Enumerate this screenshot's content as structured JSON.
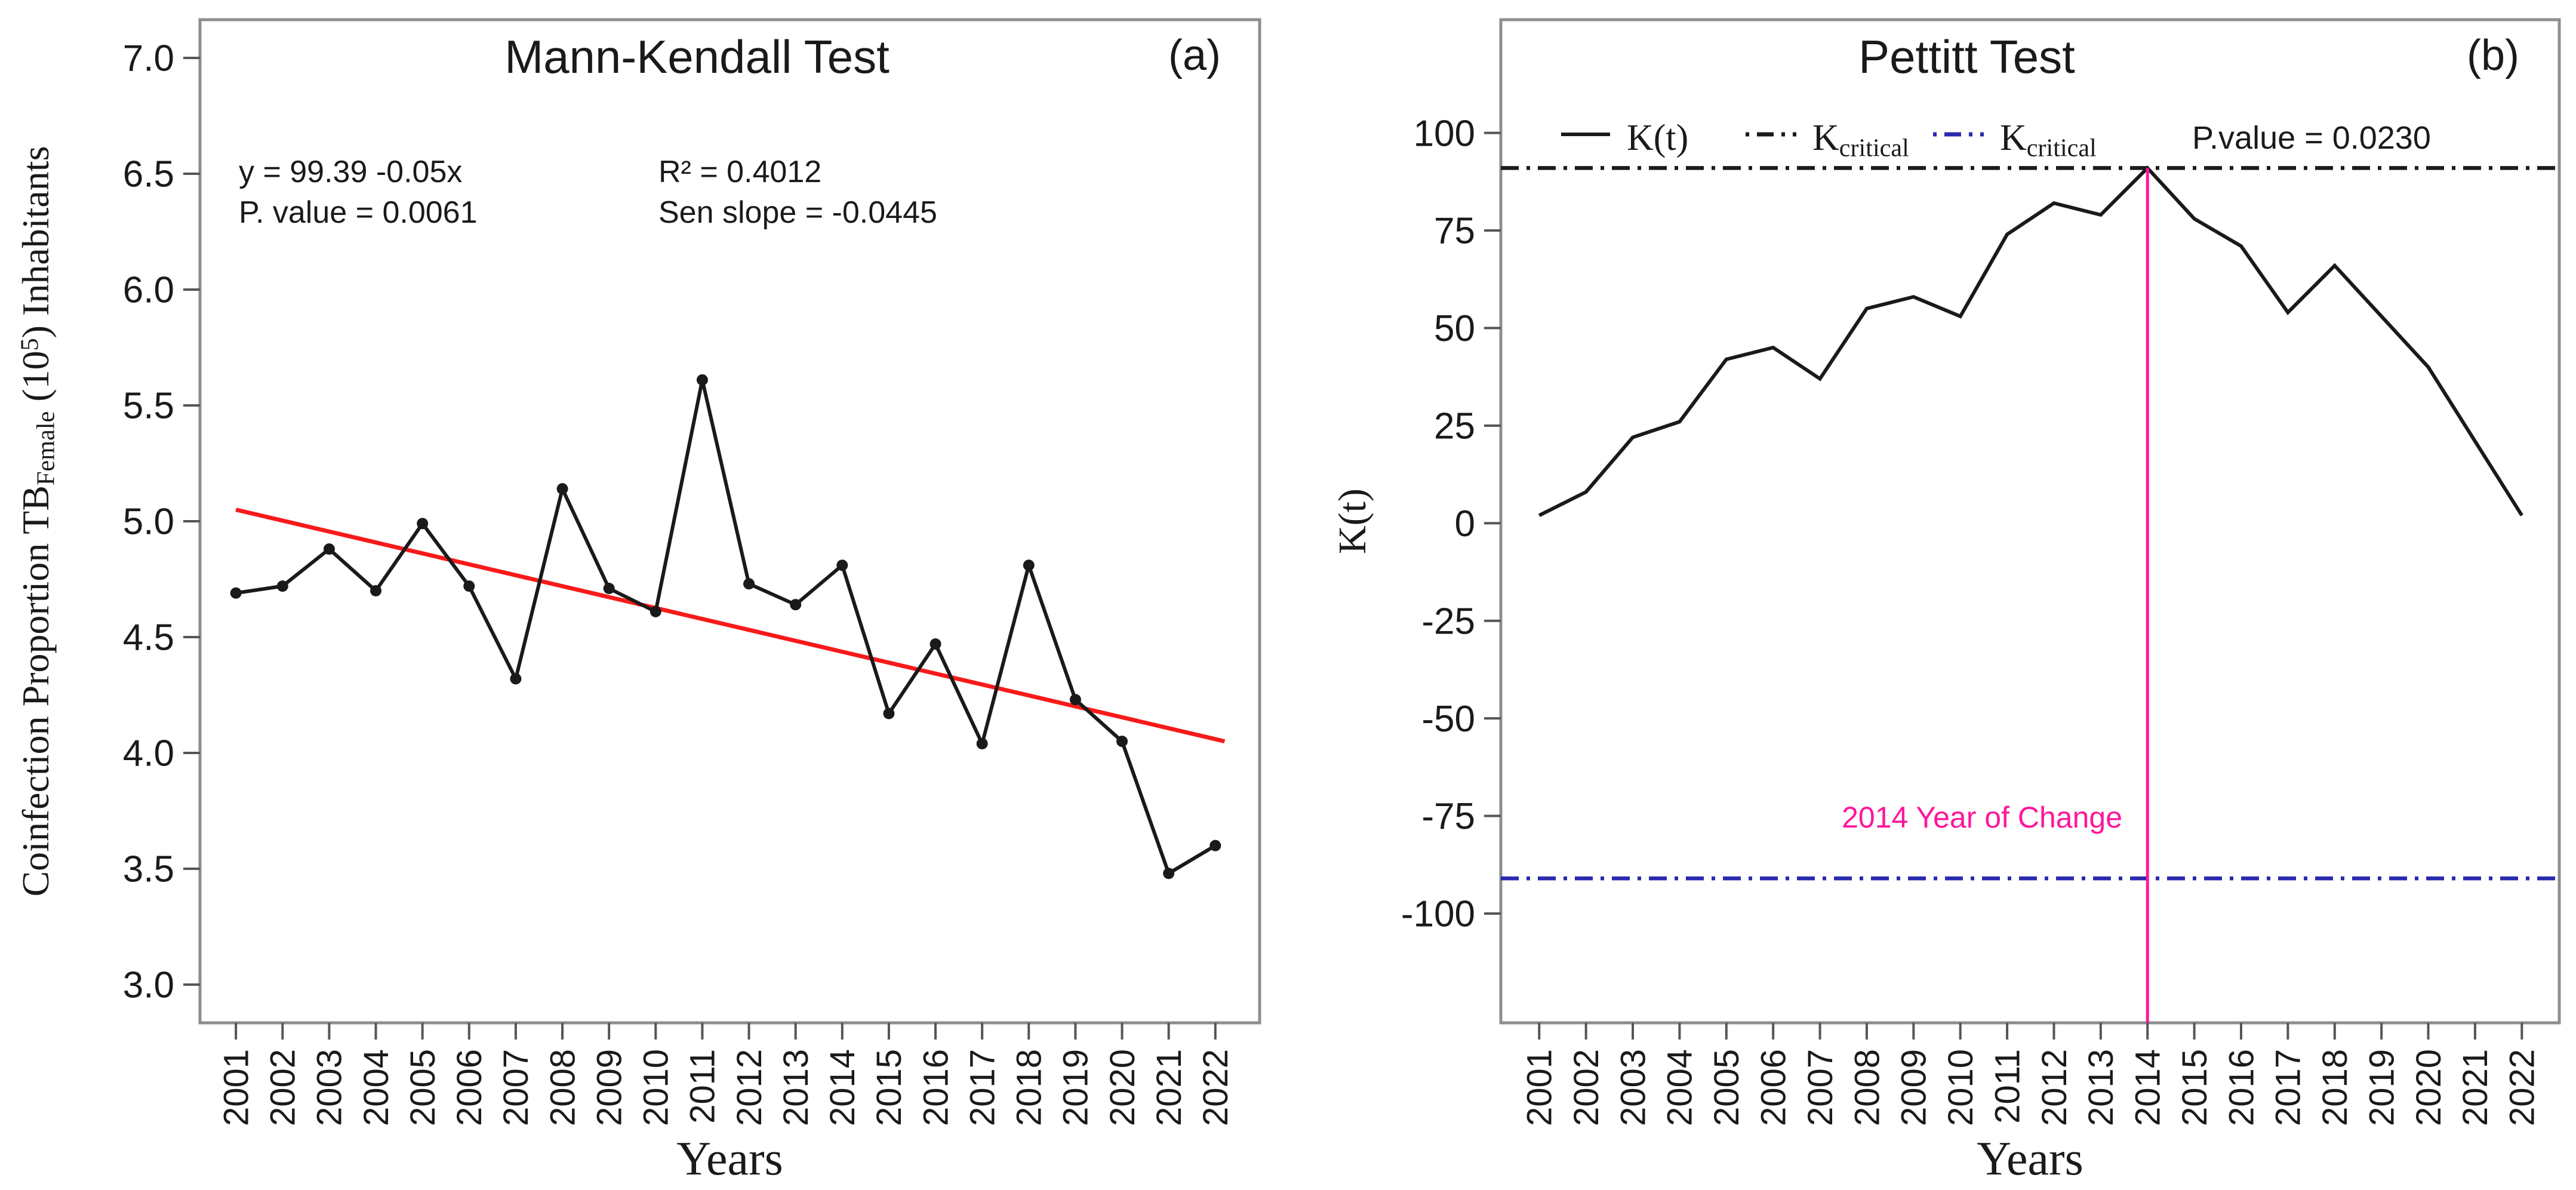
{
  "figure": {
    "panel_a": {
      "panel_label": "(a)",
      "title": "Mann-Kendall Test",
      "x_axis_title": "Years",
      "y_axis_label": {
        "prefix": "Coinfection Proportion TB",
        "subscript": "Female",
        "mid": " (10",
        "superscript": "5",
        "suffix": ") Inhabitants"
      },
      "annotations": {
        "equation": "y = 99.39 -0.05x",
        "p_value": "P. value = 0.0061",
        "r_squared": "R² = 0.4012",
        "sen_slope": "Sen slope = -0.0445"
      }
    },
    "panel_b": {
      "panel_label": "(b)",
      "title": "Pettitt Test",
      "x_axis_title": "Years",
      "y_axis_label": "K(t)",
      "legend": {
        "kt_label": "K(t)",
        "kcrit_base": "K",
        "kcrit_sub": "critical"
      },
      "p_value_text": "P.value = 0.0230",
      "change_point_label": "2014 Year of Change"
    }
  },
  "colors": {
    "series": "#1a1a1a",
    "trend_red": "#f81a1a",
    "critical_black": "#1a1a1a",
    "critical_blue": "#2a2ab0",
    "change_magenta": "#ff169b",
    "axis_border": "#8e8e8e",
    "tick": "#555555",
    "text": "#1a1a1a"
  },
  "chart_data": [
    {
      "type": "line",
      "panel": "a",
      "title": "Mann-Kendall Test",
      "xlabel": "Years",
      "ylabel": "Coinfection Proportion TB_Female (10^5) Inhabitants",
      "x": [
        2001,
        2002,
        2003,
        2004,
        2005,
        2006,
        2007,
        2008,
        2009,
        2010,
        2011,
        2012,
        2013,
        2014,
        2015,
        2016,
        2017,
        2018,
        2019,
        2020,
        2021,
        2022
      ],
      "series": [
        {
          "name": "Coinfection proportion TB female",
          "marker": "circle",
          "values": [
            4.69,
            4.72,
            4.88,
            4.7,
            4.99,
            4.72,
            4.32,
            5.14,
            4.71,
            4.61,
            5.61,
            4.73,
            4.64,
            4.81,
            4.17,
            4.47,
            4.04,
            4.81,
            4.23,
            4.05,
            3.48,
            3.6
          ]
        }
      ],
      "trend_line": {
        "x": [
          2001,
          2022.2
        ],
        "y": [
          5.05,
          4.05
        ]
      },
      "yticks": [
        3.0,
        3.5,
        4.0,
        4.5,
        5.0,
        5.5,
        6.0,
        6.5,
        7.0
      ],
      "tick_format": "fixed1",
      "ylim": [
        2.835,
        7.165
      ],
      "xlim": [
        2000.23,
        2022.95
      ],
      "grid": false,
      "legend_position": "none",
      "stats": {
        "equation": "y = 99.39 -0.05x",
        "p_value": 0.0061,
        "r_squared": 0.4012,
        "sen_slope": -0.0445
      }
    },
    {
      "type": "line",
      "panel": "b",
      "title": "Pettitt Test",
      "xlabel": "Years",
      "ylabel": "K(t)",
      "x": [
        2001,
        2002,
        2003,
        2004,
        2005,
        2006,
        2007,
        2008,
        2009,
        2010,
        2011,
        2012,
        2013,
        2014,
        2015,
        2016,
        2017,
        2018,
        2019,
        2020,
        2021,
        2022
      ],
      "series": [
        {
          "name": "K(t)",
          "marker": "none",
          "values": [
            2,
            8,
            22,
            26,
            42,
            45,
            37,
            55,
            58,
            53,
            74,
            82,
            79,
            91,
            78,
            71,
            54,
            66,
            53,
            40,
            21,
            2
          ]
        }
      ],
      "critical_lines": [
        {
          "name": "K critical upper",
          "value": 91,
          "style": "dashdot",
          "color_key": "critical_black"
        },
        {
          "name": "K critical lower",
          "value": -91,
          "style": "dashdot",
          "color_key": "critical_blue"
        }
      ],
      "change_point": {
        "year": 2014,
        "peak_value": 91
      },
      "p_value": 0.023,
      "yticks": [
        -100,
        -75,
        -50,
        -25,
        0,
        25,
        50,
        75,
        100
      ],
      "tick_format": "int",
      "ylim": [
        -128,
        129
      ],
      "xlim": [
        2000.18,
        2022.8
      ],
      "grid": false,
      "legend_position": "top-inside"
    }
  ]
}
